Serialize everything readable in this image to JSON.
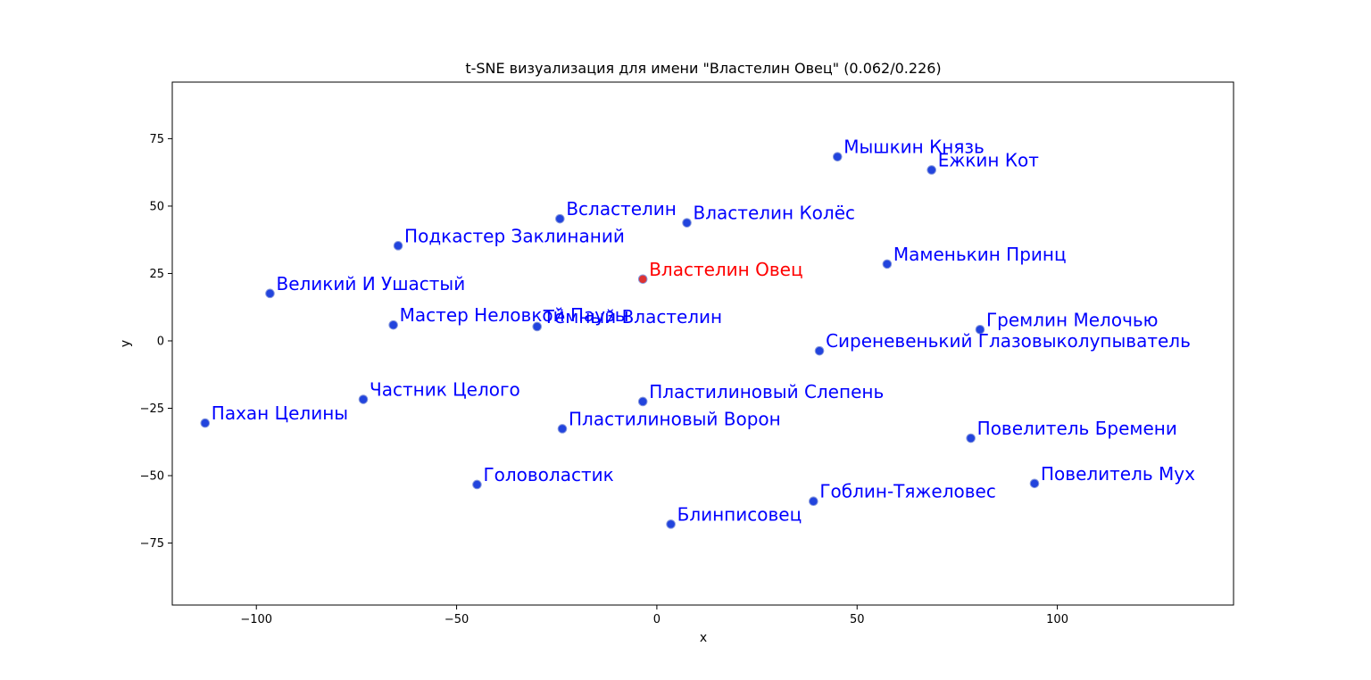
{
  "chart_data": {
    "type": "scatter",
    "title": "t-SNE визуализация для имени \"Властелин Овец\" (0.062/0.226)",
    "xlabel": "x",
    "ylabel": "y",
    "xlim": [
      -121,
      144
    ],
    "ylim": [
      -98,
      96
    ],
    "xticks": [
      -100,
      -50,
      0,
      50,
      100
    ],
    "xtick_labels": [
      "−100",
      "−50",
      "0",
      "50",
      "100"
    ],
    "yticks": [
      75,
      50,
      25,
      0,
      -25,
      -50,
      -75
    ],
    "ytick_labels": [
      "75",
      "50",
      "25",
      "0",
      "−25",
      "−50",
      "−75"
    ],
    "grid": false,
    "marker_color": "#2244dd",
    "highlight_marker_color": "#dd3333",
    "label_color": "#0000ff",
    "highlight_label_color": "#ff0000",
    "points": [
      {
        "label": "Мышкин Князь",
        "x": 45.1,
        "y": 68.3
      },
      {
        "label": "Ежкин Кот",
        "x": 68.6,
        "y": 63.4
      },
      {
        "label": "Всластелин",
        "x": -24.2,
        "y": 45.3
      },
      {
        "label": "Властелин Колёс",
        "x": 7.5,
        "y": 43.8
      },
      {
        "label": "Подкастер Заклинаний",
        "x": -64.6,
        "y": 35.3
      },
      {
        "label": "Маменькин Принц",
        "x": 57.5,
        "y": 28.5
      },
      {
        "label": "Властелин Овец",
        "x": -3.5,
        "y": 22.9,
        "highlight": true
      },
      {
        "label": "Великий И Ушастый",
        "x": -96.6,
        "y": 17.6
      },
      {
        "label": "Мастер Неловкой Паузы",
        "x": -65.8,
        "y": 5.9
      },
      {
        "label": "Тёмный Властелин",
        "x": -29.9,
        "y": 5.3
      },
      {
        "label": "Гремлин Мелочью",
        "x": 80.7,
        "y": 4.2
      },
      {
        "label": "Сиреневенький Глазовыколупыватель",
        "x": 40.6,
        "y": -3.7
      },
      {
        "label": "Частник Целого",
        "x": -73.3,
        "y": -21.7
      },
      {
        "label": "Пластилиновый Слепень",
        "x": -3.5,
        "y": -22.5
      },
      {
        "label": "Пахан Целины",
        "x": -112.8,
        "y": -30.5
      },
      {
        "label": "Пластилиновый Ворон",
        "x": -23.6,
        "y": -32.6
      },
      {
        "label": "Повелитель Бремени",
        "x": 78.4,
        "y": -36.1
      },
      {
        "label": "Головоластик",
        "x": -44.9,
        "y": -53.3
      },
      {
        "label": "Повелитель Мух",
        "x": 94.3,
        "y": -52.9
      },
      {
        "label": "Гоблин-Тяжеловес",
        "x": 39.1,
        "y": -59.5
      },
      {
        "label": "Блинписовец",
        "x": 3.5,
        "y": -68.0
      }
    ]
  }
}
